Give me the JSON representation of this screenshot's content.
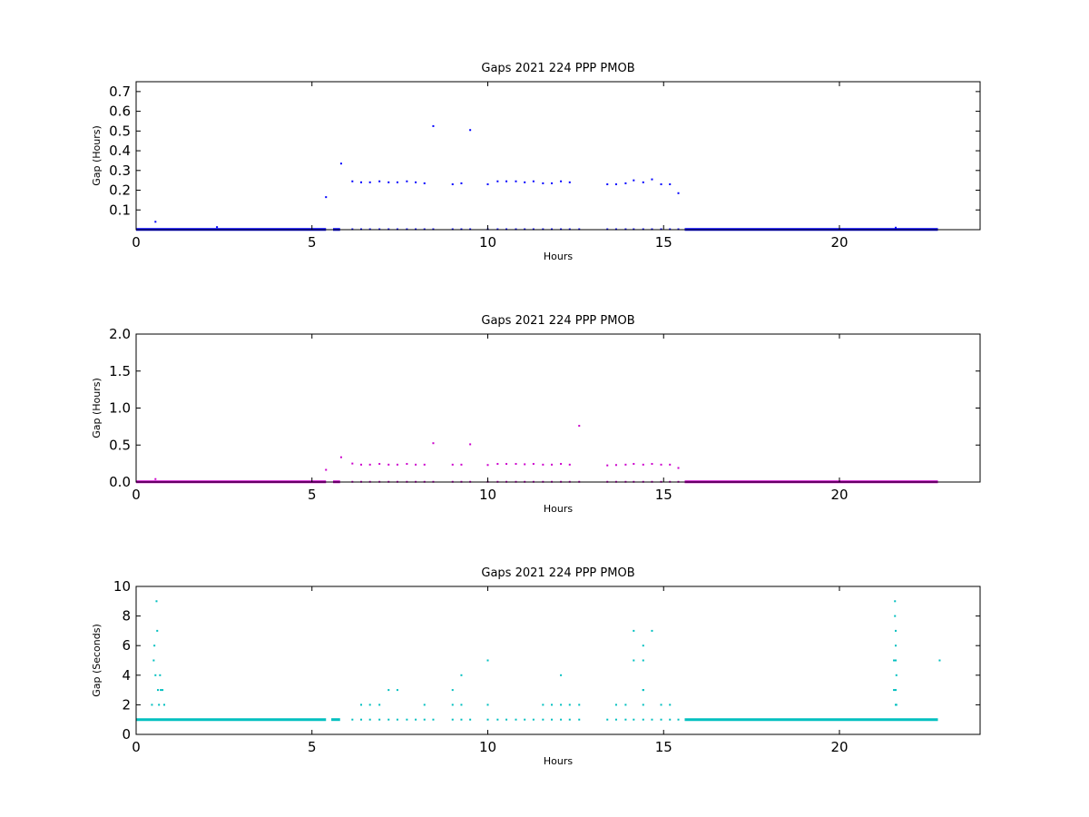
{
  "chart_data": [
    {
      "type": "scatter",
      "title": "Gaps 2021 224 PPP  PMOB",
      "xlabel": "Hours",
      "ylabel": "Gap (Hours)",
      "xlim": [
        0,
        24
      ],
      "ylim": [
        0,
        0.75
      ],
      "xticks": [
        0,
        5,
        10,
        15,
        20
      ],
      "yticks": [
        0.1,
        0.2,
        0.3,
        0.4,
        0.5,
        0.6,
        0.7
      ],
      "grid": false,
      "color": "#0000ff",
      "baseline": {
        "y": 0.001,
        "segments": [
          [
            0,
            5.4
          ],
          [
            5.6,
            5.8
          ],
          [
            15.6,
            22.8
          ]
        ]
      },
      "series": [
        {
          "x": [
            0.55,
            2.3,
            5.4,
            5.83,
            6.15,
            6.4,
            6.65,
            6.92,
            7.18,
            7.43,
            7.7,
            7.95,
            8.2,
            8.45,
            9.0,
            9.25,
            9.5,
            10.0,
            10.28,
            10.53,
            10.8,
            11.05,
            11.3,
            11.57,
            11.82,
            12.08,
            12.33,
            13.4,
            13.65,
            13.92,
            14.15,
            14.42,
            14.67,
            14.93,
            15.18,
            15.42,
            21.6
          ],
          "y": [
            0.04,
            0.013,
            0.165,
            0.335,
            0.245,
            0.24,
            0.24,
            0.245,
            0.24,
            0.24,
            0.245,
            0.24,
            0.235,
            0.525,
            0.23,
            0.235,
            0.505,
            0.23,
            0.245,
            0.245,
            0.245,
            0.24,
            0.245,
            0.235,
            0.235,
            0.245,
            0.24,
            0.23,
            0.23,
            0.235,
            0.25,
            0.24,
            0.255,
            0.23,
            0.23,
            0.185,
            0.01
          ]
        },
        {
          "x": [
            6.15,
            6.4,
            6.65,
            6.92,
            7.18,
            7.43,
            7.7,
            7.95,
            8.2,
            8.45,
            9.0,
            9.25,
            9.5,
            10.0,
            10.28,
            10.53,
            10.8,
            11.05,
            11.3,
            11.57,
            11.82,
            12.08,
            12.33,
            12.6,
            13.4,
            13.65,
            13.92,
            14.15,
            14.42,
            14.67,
            14.93,
            15.18,
            15.42
          ],
          "y": [
            0.002,
            0.002,
            0.002,
            0.002,
            0.002,
            0.002,
            0.002,
            0.002,
            0.002,
            0.002,
            0.002,
            0.002,
            0.002,
            0.002,
            0.002,
            0.002,
            0.002,
            0.002,
            0.002,
            0.002,
            0.002,
            0.002,
            0.002,
            0.002,
            0.002,
            0.002,
            0.002,
            0.002,
            0.002,
            0.002,
            0.002,
            0.002,
            0.002
          ]
        }
      ]
    },
    {
      "type": "scatter",
      "title": "Gaps 2021 224 PPP  PMOB",
      "xlabel": "Hours",
      "ylabel": "Gap (Hours)",
      "xlim": [
        0,
        24
      ],
      "ylim": [
        0,
        2.0
      ],
      "xticks": [
        0,
        5,
        10,
        15,
        20
      ],
      "yticks": [
        0.0,
        0.5,
        1.0,
        1.5,
        2.0
      ],
      "grid": false,
      "color": "#cc00cc",
      "baseline": {
        "y": 0.003,
        "segments": [
          [
            0,
            5.4
          ],
          [
            5.6,
            5.8
          ],
          [
            15.6,
            22.8
          ]
        ]
      },
      "series": [
        {
          "x": [
            0.55,
            5.4,
            5.83,
            6.15,
            6.4,
            6.65,
            6.92,
            7.18,
            7.43,
            7.7,
            7.95,
            8.2,
            8.45,
            9.0,
            9.25,
            9.5,
            10.0,
            10.28,
            10.53,
            10.8,
            11.05,
            11.3,
            11.57,
            11.82,
            12.08,
            12.33,
            12.6,
            13.4,
            13.65,
            13.92,
            14.15,
            14.42,
            14.67,
            14.93,
            15.18,
            15.42
          ],
          "y": [
            0.04,
            0.165,
            0.335,
            0.25,
            0.235,
            0.235,
            0.245,
            0.235,
            0.235,
            0.245,
            0.235,
            0.235,
            0.525,
            0.235,
            0.235,
            0.51,
            0.23,
            0.245,
            0.245,
            0.245,
            0.24,
            0.245,
            0.235,
            0.235,
            0.245,
            0.235,
            0.76,
            0.225,
            0.23,
            0.235,
            0.245,
            0.235,
            0.245,
            0.235,
            0.235,
            0.19
          ]
        },
        {
          "x": [
            6.15,
            6.4,
            6.65,
            6.92,
            7.18,
            7.43,
            7.7,
            7.95,
            8.2,
            8.45,
            9.0,
            9.25,
            9.5,
            10.0,
            10.28,
            10.53,
            10.8,
            11.05,
            11.3,
            11.57,
            11.82,
            12.08,
            12.33,
            12.6,
            13.4,
            13.65,
            13.92,
            14.15,
            14.42,
            14.67,
            14.93,
            15.18,
            15.42
          ],
          "y": [
            0.003,
            0.003,
            0.003,
            0.003,
            0.003,
            0.003,
            0.003,
            0.003,
            0.003,
            0.003,
            0.003,
            0.003,
            0.003,
            0.003,
            0.003,
            0.003,
            0.003,
            0.003,
            0.003,
            0.003,
            0.003,
            0.003,
            0.003,
            0.003,
            0.003,
            0.003,
            0.003,
            0.003,
            0.003,
            0.003,
            0.003,
            0.003,
            0.003
          ]
        }
      ]
    },
    {
      "type": "scatter",
      "title": "Gaps 2021 224 PPP  PMOB",
      "xlabel": "Hours",
      "ylabel": "Gap (Seconds)",
      "xlim": [
        0,
        24
      ],
      "ylim": [
        0,
        10
      ],
      "xticks": [
        0,
        5,
        10,
        15,
        20
      ],
      "yticks": [
        0,
        2,
        4,
        6,
        8,
        10
      ],
      "grid": false,
      "color": "#00bfbf",
      "baseline": {
        "y": 1,
        "segments": [
          [
            0,
            5.4
          ],
          [
            5.55,
            5.8
          ],
          [
            15.6,
            22.8
          ]
        ]
      },
      "series": [
        {
          "x": [
            0.45,
            0.5,
            0.52,
            0.55,
            0.58,
            0.6,
            0.62,
            0.65,
            0.68,
            0.7,
            0.75,
            0.8,
            6.4,
            6.65,
            6.92,
            7.18,
            7.43,
            8.2,
            9.0,
            9.0,
            9.25,
            9.25,
            10.0,
            10.0,
            11.57,
            11.82,
            12.08,
            12.08,
            12.33,
            12.6,
            13.65,
            13.92,
            14.15,
            14.15,
            14.42,
            14.42,
            14.42,
            14.42,
            14.42,
            14.67,
            14.93,
            15.18,
            21.55,
            21.55,
            21.58,
            21.58,
            21.6,
            21.6,
            21.6,
            21.62,
            21.6,
            21.62,
            21.6,
            22.85
          ],
          "y": [
            2,
            5,
            6,
            4,
            9,
            7,
            3,
            2,
            4,
            3,
            3,
            2,
            2,
            2,
            2,
            3,
            3,
            2,
            3,
            2,
            4,
            2,
            5,
            2,
            2,
            2,
            4,
            2,
            2,
            2,
            2,
            2,
            7,
            5,
            6,
            5,
            3,
            3,
            2,
            7,
            2,
            2,
            3,
            5,
            9,
            8,
            7,
            6,
            5,
            4,
            3,
            2,
            2,
            5
          ]
        },
        {
          "x": [
            6.15,
            6.4,
            6.65,
            6.92,
            7.18,
            7.43,
            7.7,
            7.95,
            8.2,
            8.45,
            9.0,
            9.25,
            9.5,
            10.0,
            10.28,
            10.53,
            10.8,
            11.05,
            11.3,
            11.57,
            11.82,
            12.08,
            12.33,
            12.6,
            13.4,
            13.65,
            13.92,
            14.15,
            14.42,
            14.67,
            14.93,
            15.18,
            15.42
          ],
          "y": [
            1,
            1,
            1,
            1,
            1,
            1,
            1,
            1,
            1,
            1,
            1,
            1,
            1,
            1,
            1,
            1,
            1,
            1,
            1,
            1,
            1,
            1,
            1,
            1,
            1,
            1,
            1,
            1,
            1,
            1,
            1,
            1,
            1
          ]
        }
      ]
    }
  ]
}
